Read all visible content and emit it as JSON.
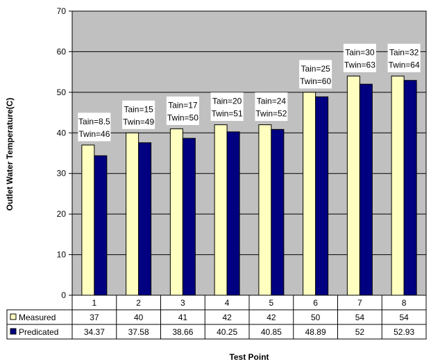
{
  "chart_data": {
    "type": "bar",
    "title": "",
    "xlabel": "Test Point",
    "ylabel": "Outlet Water Temperature(C)",
    "ylim": [
      0,
      70
    ],
    "yticks": [
      0,
      10,
      20,
      30,
      40,
      50,
      60,
      70
    ],
    "categories": [
      "1",
      "2",
      "3",
      "4",
      "5",
      "6",
      "7",
      "8"
    ],
    "series": [
      {
        "name": "Measured",
        "color": "#ffffc0",
        "values": [
          37,
          40,
          41,
          42,
          42,
          50,
          54,
          54
        ],
        "table_values": [
          "37",
          "40",
          "41",
          "42",
          "42",
          "50",
          "54",
          "54"
        ]
      },
      {
        "name": "Predicated",
        "color": "#000080",
        "values": [
          34.37,
          37.58,
          38.66,
          40.25,
          40.85,
          48.89,
          52,
          52.93
        ],
        "table_values": [
          "34.37",
          "37.58",
          "38.66",
          "40.25",
          "40.85",
          "48.89",
          "52",
          "52.93"
        ]
      }
    ],
    "annotations": [
      {
        "line1": "Tain=8.5",
        "line2": "Twin=46"
      },
      {
        "line1": "Tain=15",
        "line2": "Twin=49"
      },
      {
        "line1": "Tain=17",
        "line2": "Twin=50"
      },
      {
        "line1": "Tain=20",
        "line2": "Twin=51"
      },
      {
        "line1": "Tain=24",
        "line2": "Twin=52"
      },
      {
        "line1": "Tain=25",
        "line2": "Twin=60"
      },
      {
        "line1": "Tain=30",
        "line2": "Twin=63"
      },
      {
        "line1": "Tain=32",
        "line2": "Twin=64"
      }
    ],
    "grid": true,
    "legend": "data-table-left",
    "plot_background": "#c0c0c0"
  }
}
